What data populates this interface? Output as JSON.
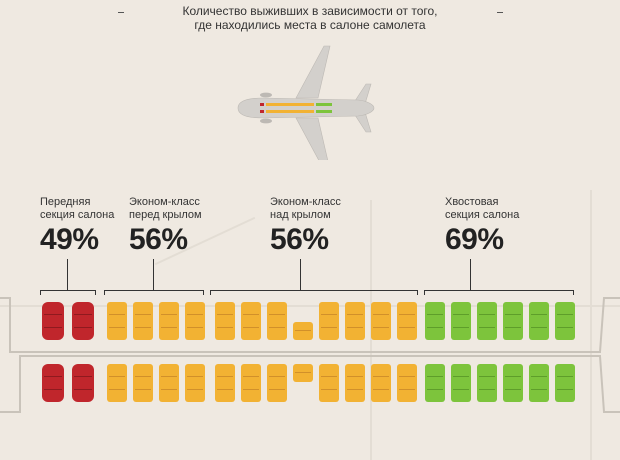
{
  "title": {
    "line1": "Количество выживших в зависимости от того,",
    "line2": "где находились места в салоне самолета"
  },
  "colors": {
    "front": "#c0262c",
    "economy": "#f2b233",
    "tail": "#7dc43c",
    "background": "#efe9e1"
  },
  "sections": [
    {
      "id": "front",
      "label_line1": "Передняя",
      "label_line2": "секция салона",
      "percent": "49%",
      "survival_rate": 49,
      "color": "#c0262c",
      "seat_columns": 2
    },
    {
      "id": "economy-before-wing",
      "label_line1": "Эконом-класс",
      "label_line2": "перед крылом",
      "percent": "56%",
      "survival_rate": 56,
      "color": "#f2b233",
      "seat_columns": 4
    },
    {
      "id": "economy-over-wing",
      "label_line1": "Эконом-класс",
      "label_line2": "над крылом",
      "percent": "56%",
      "survival_rate": 56,
      "color": "#f2b233",
      "seat_columns": 8
    },
    {
      "id": "tail",
      "label_line1": "Хвостовая",
      "label_line2": "секция салона",
      "percent": "69%",
      "survival_rate": 69,
      "color": "#7dc43c",
      "seat_columns": 6
    }
  ],
  "icons": {
    "plane": "airplane-top-view-icon",
    "seat": "seat-icon"
  }
}
